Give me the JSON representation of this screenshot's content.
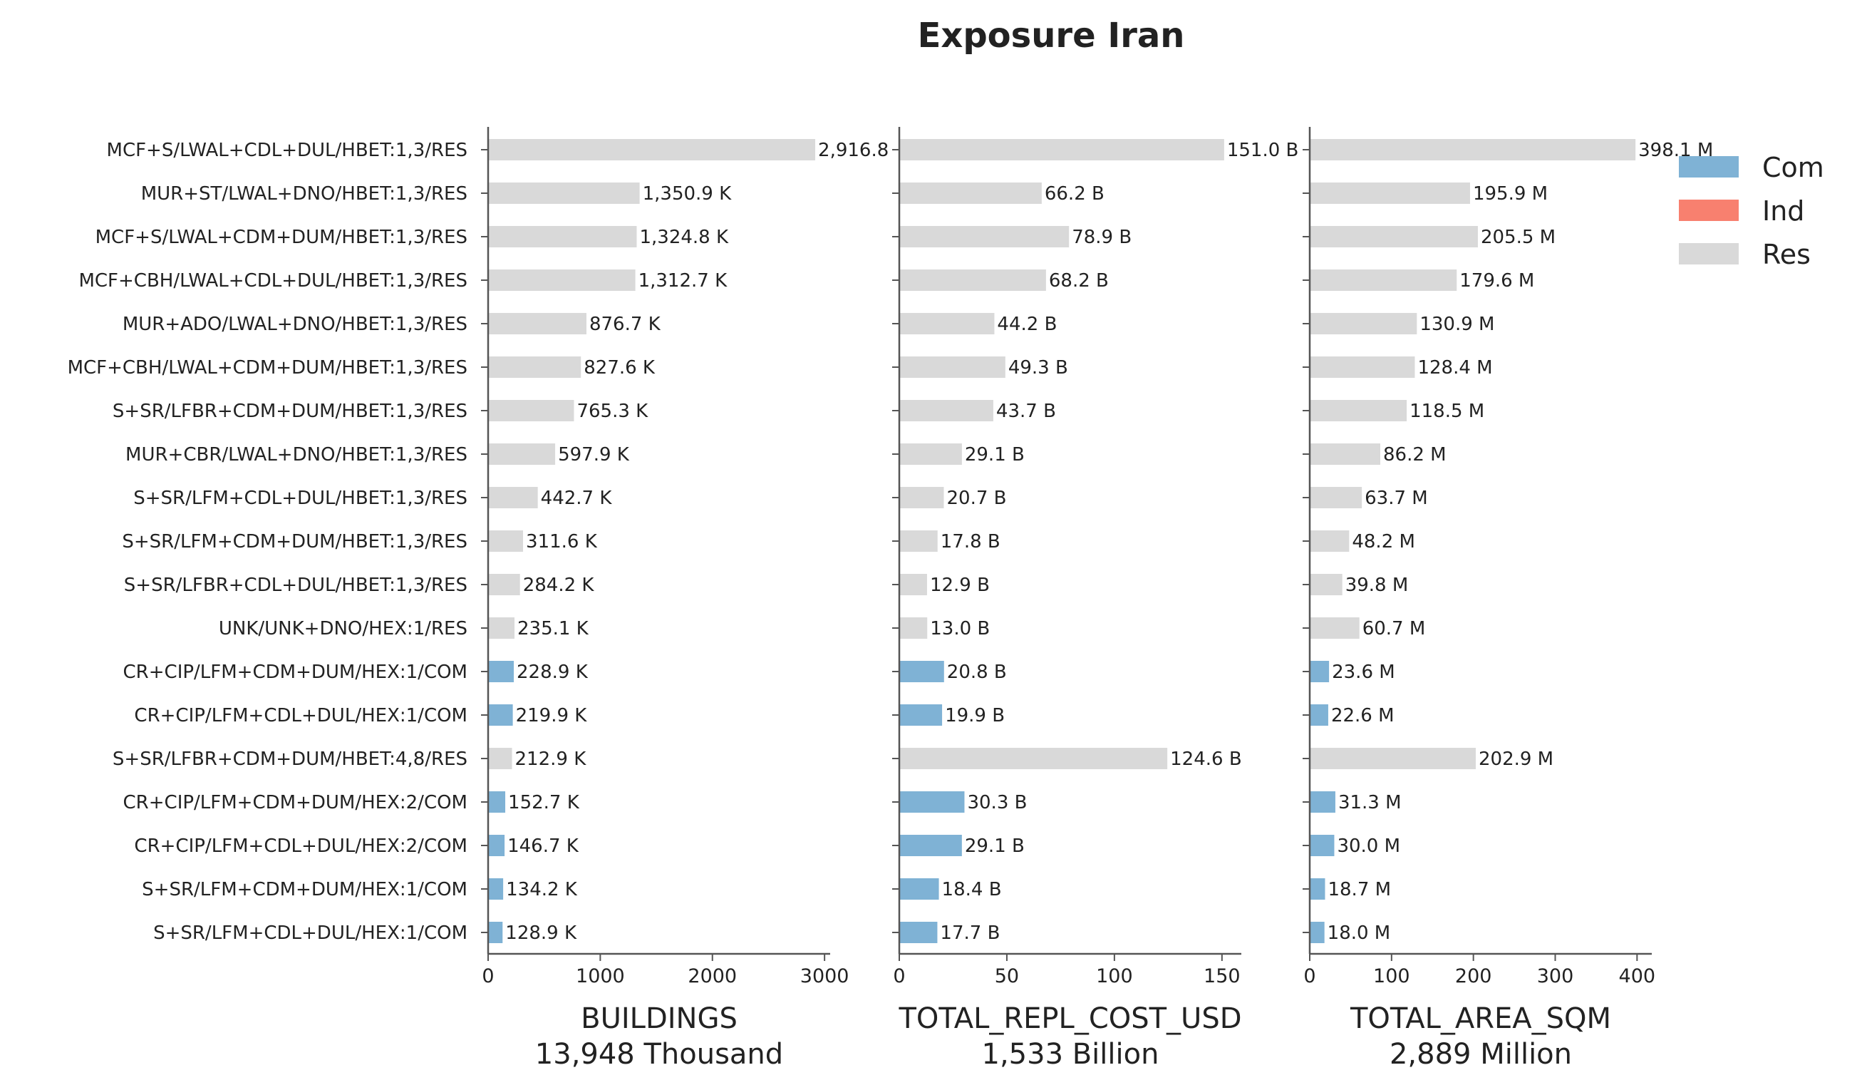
{
  "chart_data": {
    "type": "bar",
    "title": "Exposure Iran",
    "categories": [
      "MCF+S/LWAL+CDL+DUL/HBET:1,3/RES",
      "MUR+ST/LWAL+DNO/HBET:1,3/RES",
      "MCF+S/LWAL+CDM+DUM/HBET:1,3/RES",
      "MCF+CBH/LWAL+CDL+DUL/HBET:1,3/RES",
      "MUR+ADO/LWAL+DNO/HBET:1,3/RES",
      "MCF+CBH/LWAL+CDM+DUM/HBET:1,3/RES",
      "S+SR/LFBR+CDM+DUM/HBET:1,3/RES",
      "MUR+CBR/LWAL+DNO/HBET:1,3/RES",
      "S+SR/LFM+CDL+DUL/HBET:1,3/RES",
      "S+SR/LFM+CDM+DUM/HBET:1,3/RES",
      "S+SR/LFBR+CDL+DUL/HBET:1,3/RES",
      "UNK/UNK+DNO/HEX:1/RES",
      "CR+CIP/LFM+CDM+DUM/HEX:1/COM",
      "CR+CIP/LFM+CDL+DUL/HEX:1/COM",
      "S+SR/LFBR+CDM+DUM/HBET:4,8/RES",
      "CR+CIP/LFM+CDM+DUM/HEX:2/COM",
      "CR+CIP/LFM+CDL+DUL/HEX:2/COM",
      "S+SR/LFM+CDM+DUM/HEX:1/COM",
      "S+SR/LFM+CDL+DUL/HEX:1/COM"
    ],
    "occupancy": [
      "Res",
      "Res",
      "Res",
      "Res",
      "Res",
      "Res",
      "Res",
      "Res",
      "Res",
      "Res",
      "Res",
      "Res",
      "Com",
      "Com",
      "Res",
      "Com",
      "Com",
      "Com",
      "Com"
    ],
    "legend": {
      "placement": "top-right",
      "entries": [
        {
          "name": "Com",
          "color": "#7fb2d5"
        },
        {
          "name": "Ind",
          "color": "#f8806f"
        },
        {
          "name": "Res",
          "color": "#d9d9d9"
        }
      ]
    },
    "panels": [
      {
        "xlabel": "BUILDINGS",
        "total": "13,948 Thousand",
        "xlim": [
          0,
          3050
        ],
        "ticks": [
          0,
          1000,
          2000,
          3000
        ],
        "tick_labels": [
          "0",
          "1000",
          "2000",
          "3000"
        ],
        "values": [
          2916.8,
          1350.9,
          1324.8,
          1312.7,
          876.7,
          827.6,
          765.3,
          597.9,
          442.7,
          311.6,
          284.2,
          235.1,
          228.9,
          219.9,
          212.9,
          152.7,
          146.7,
          134.2,
          128.9
        ],
        "labels": [
          "2,916.8",
          "1,350.9 K",
          "1,324.8 K",
          "1,312.7 K",
          "876.7 K",
          "827.6 K",
          "765.3 K",
          "597.9 K",
          "442.7 K",
          "311.6 K",
          "284.2 K",
          "235.1 K",
          "228.9 K",
          "219.9 K",
          "212.9 K",
          "152.7 K",
          "146.7 K",
          "134.2 K",
          "128.9 K"
        ]
      },
      {
        "xlabel": "TOTAL_REPL_COST_USD",
        "total": "1,533 Billion",
        "xlim": [
          0,
          159
        ],
        "ticks": [
          0,
          50,
          100,
          150
        ],
        "tick_labels": [
          "0",
          "50",
          "100",
          "150"
        ],
        "values": [
          151.0,
          66.2,
          78.9,
          68.2,
          44.2,
          49.3,
          43.7,
          29.1,
          20.7,
          17.8,
          12.9,
          13.0,
          20.8,
          19.9,
          124.6,
          30.3,
          29.1,
          18.4,
          17.7
        ],
        "labels": [
          "151.0 B",
          "66.2 B",
          "78.9 B",
          "68.2 B",
          "44.2 B",
          "49.3 B",
          "43.7 B",
          "29.1 B",
          "20.7 B",
          "17.8 B",
          "12.9 B",
          "13.0 B",
          "20.8 B",
          "19.9 B",
          "124.6 B",
          "30.3 B",
          "29.1 B",
          "18.4 B",
          "17.7 B"
        ]
      },
      {
        "xlabel": "TOTAL_AREA_SQM",
        "total": "2,889 Million",
        "xlim": [
          0,
          418
        ],
        "ticks": [
          0,
          100,
          200,
          300,
          400
        ],
        "tick_labels": [
          "0",
          "100",
          "200",
          "300",
          "400"
        ],
        "values": [
          398.1,
          195.9,
          205.5,
          179.6,
          130.9,
          128.4,
          118.5,
          86.2,
          63.7,
          48.2,
          39.8,
          60.7,
          23.6,
          22.6,
          202.9,
          31.3,
          30.0,
          18.7,
          18.0
        ],
        "labels": [
          "398.1 M",
          "195.9 M",
          "205.5 M",
          "179.6 M",
          "130.9 M",
          "128.4 M",
          "118.5 M",
          "86.2 M",
          "63.7 M",
          "48.2 M",
          "39.8 M",
          "60.7 M",
          "23.6 M",
          "22.6 M",
          "202.9 M",
          "31.3 M",
          "30.0 M",
          "18.7 M",
          "18.0 M"
        ]
      }
    ]
  }
}
